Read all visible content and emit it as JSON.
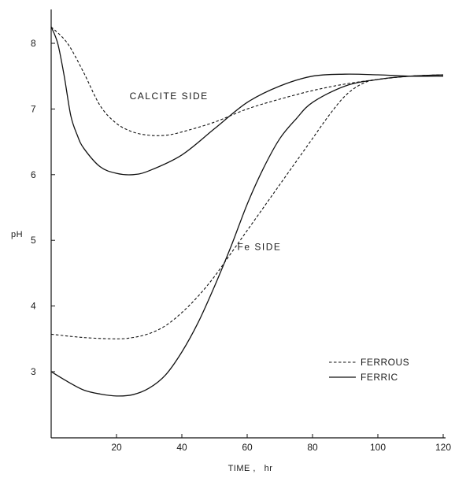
{
  "chart_data": {
    "type": "line",
    "title": "",
    "xlabel": "TIME ,   hr",
    "ylabel": "pH",
    "xlim": [
      0,
      120
    ],
    "ylim": [
      2,
      8.5
    ],
    "xticks": [
      20,
      40,
      60,
      80,
      100,
      120
    ],
    "yticks": [
      3,
      4,
      5,
      6,
      7,
      8
    ],
    "grid": false,
    "legend": {
      "placement": "bottom-right",
      "entries": [
        {
          "label": "FERROUS",
          "style": "dashed"
        },
        {
          "label": "FERRIC",
          "style": "solid"
        }
      ]
    },
    "annotations": [
      {
        "text": "CALCITE  SIDE",
        "x": 24,
        "y": 7.15
      },
      {
        "text": "Fe  SIDE",
        "x": 57,
        "y": 4.85
      }
    ],
    "series": [
      {
        "group": "CALCITE SIDE",
        "legend_ref": "FERROUS",
        "style": "dashed",
        "x": [
          0,
          5,
          10,
          15,
          20,
          25,
          30,
          35,
          40,
          50,
          60,
          70,
          80,
          90,
          100,
          110,
          120
        ],
        "y": [
          8.25,
          8.0,
          7.55,
          7.05,
          6.78,
          6.65,
          6.6,
          6.6,
          6.65,
          6.8,
          7.0,
          7.15,
          7.28,
          7.38,
          7.45,
          7.5,
          7.52
        ]
      },
      {
        "group": "CALCITE SIDE",
        "legend_ref": "FERRIC",
        "style": "solid",
        "x": [
          0,
          2,
          4,
          6,
          8,
          10,
          15,
          20,
          25,
          30,
          40,
          50,
          60,
          70,
          80,
          90,
          100,
          110,
          120
        ],
        "y": [
          8.25,
          8.0,
          7.5,
          6.9,
          6.6,
          6.4,
          6.12,
          6.02,
          6.0,
          6.06,
          6.3,
          6.7,
          7.1,
          7.35,
          7.5,
          7.53,
          7.52,
          7.5,
          7.5
        ]
      },
      {
        "group": "Fe SIDE",
        "legend_ref": "FERROUS",
        "style": "dashed",
        "x": [
          0,
          10,
          20,
          25,
          30,
          35,
          40,
          45,
          50,
          55,
          60,
          65,
          70,
          75,
          80,
          85,
          90,
          95,
          100,
          110,
          120
        ],
        "y": [
          3.57,
          3.52,
          3.5,
          3.52,
          3.58,
          3.7,
          3.9,
          4.15,
          4.45,
          4.8,
          5.15,
          5.5,
          5.85,
          6.2,
          6.55,
          6.9,
          7.2,
          7.38,
          7.45,
          7.5,
          7.52
        ]
      },
      {
        "group": "Fe SIDE",
        "legend_ref": "FERRIC",
        "style": "solid",
        "x": [
          0,
          5,
          10,
          15,
          20,
          25,
          30,
          35,
          40,
          45,
          50,
          55,
          60,
          65,
          70,
          75,
          80,
          90,
          100,
          110,
          120
        ],
        "y": [
          3.0,
          2.85,
          2.72,
          2.66,
          2.63,
          2.65,
          2.75,
          2.95,
          3.3,
          3.75,
          4.3,
          4.9,
          5.55,
          6.1,
          6.55,
          6.85,
          7.1,
          7.35,
          7.45,
          7.5,
          7.52
        ]
      }
    ]
  }
}
